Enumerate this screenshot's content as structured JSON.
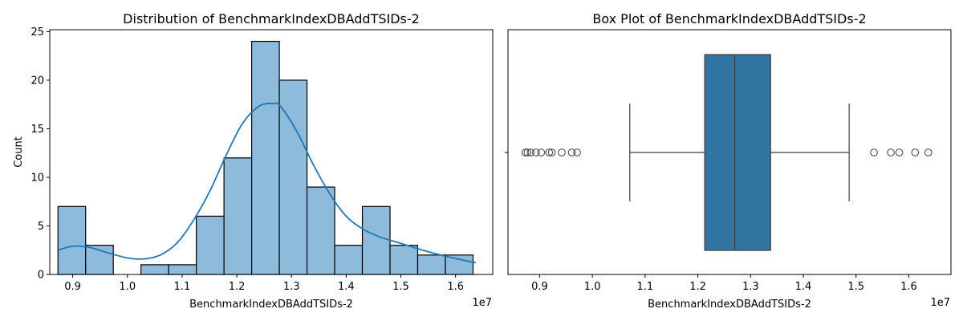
{
  "chart_data": [
    {
      "type": "bar",
      "title": "Distribution of BenchmarkIndexDBAddTSIDs-2",
      "xlabel": "BenchmarkIndexDBAddTSIDs-2",
      "ylabel": "Count",
      "x_offset_label": "1e7",
      "xlim": [
        0.858,
        1.668
      ],
      "ylim": [
        0,
        25.2
      ],
      "x_ticks": [
        0.9,
        1.0,
        1.1,
        1.2,
        1.3,
        1.4,
        1.5,
        1.6
      ],
      "x_tick_labels": [
        "0.9",
        "1.0",
        "1.1",
        "1.2",
        "1.3",
        "1.4",
        "1.5",
        "1.6"
      ],
      "y_ticks": [
        0,
        5,
        10,
        15,
        20,
        25
      ],
      "y_tick_labels": [
        "0",
        "5",
        "10",
        "15",
        "20",
        "25"
      ],
      "grid": false,
      "bin_edges": [
        0.873,
        0.9236,
        0.9742,
        1.0248,
        1.0754,
        1.126,
        1.1766,
        1.2272,
        1.2778,
        1.3284,
        1.379,
        1.4296,
        1.4802,
        1.5308,
        1.5814,
        1.632
      ],
      "values": [
        7,
        3,
        0,
        1,
        1,
        6,
        12,
        24,
        20,
        9,
        3,
        7,
        3,
        2,
        2
      ],
      "bar_color": "#8ebadb",
      "kde": {
        "color": "#1f77b4",
        "x": [
          0.873,
          0.9,
          0.93,
          0.96,
          1.0,
          1.03,
          1.06,
          1.09,
          1.12,
          1.15,
          1.18,
          1.21,
          1.24,
          1.265,
          1.28,
          1.31,
          1.34,
          1.37,
          1.4,
          1.43,
          1.46,
          1.5,
          1.54,
          1.58,
          1.637
        ],
        "y": [
          2.5,
          2.9,
          2.8,
          2.3,
          1.7,
          1.6,
          2.0,
          3.2,
          5.5,
          8.5,
          12.2,
          15.5,
          17.3,
          17.6,
          17.3,
          14.7,
          11.3,
          8.3,
          6.0,
          4.7,
          3.9,
          3.2,
          2.5,
          1.9,
          1.2
        ]
      }
    },
    {
      "type": "box",
      "title": "Box Plot of BenchmarkIndexDBAddTSIDs-2",
      "xlabel": "BenchmarkIndexDBAddTSIDs-2",
      "x_offset_label": "1e7",
      "xlim": [
        0.84,
        1.68
      ],
      "x_ticks": [
        0.9,
        1.0,
        1.1,
        1.2,
        1.3,
        1.4,
        1.5,
        1.6
      ],
      "x_tick_labels": [
        "0.9",
        "1.0",
        "1.1",
        "1.2",
        "1.3",
        "1.4",
        "1.5",
        "1.6"
      ],
      "box_color": "#3274a1",
      "whisker_low": 1.071,
      "q1": 1.213,
      "median": 1.27,
      "q3": 1.338,
      "whisker_high": 1.487,
      "outliers": [
        0.873,
        0.877,
        0.883,
        0.893,
        0.903,
        0.918,
        0.923,
        0.942,
        0.961,
        0.971,
        1.534,
        1.566,
        1.582,
        1.612,
        1.637
      ]
    }
  ]
}
